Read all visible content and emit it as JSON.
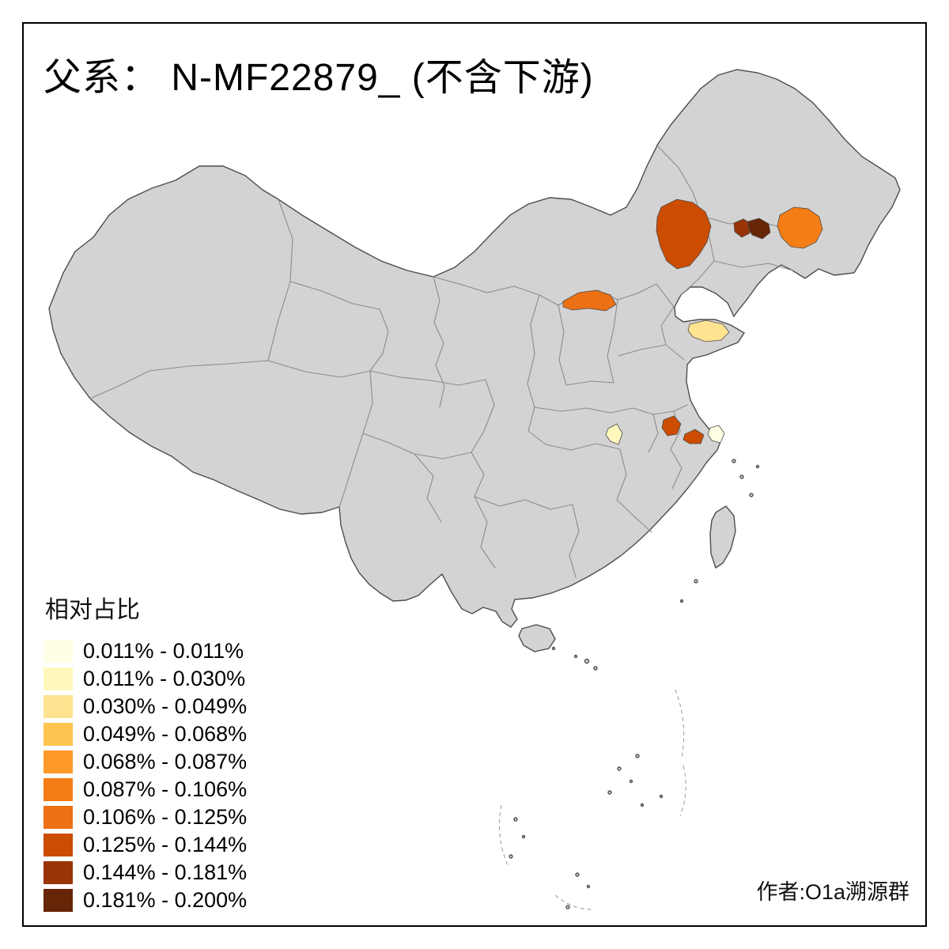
{
  "title": "父系： N-MF22879_ (不含下游)",
  "attribution": "作者:O1a溯源群",
  "legend": {
    "title": "相对占比",
    "items": [
      {
        "label": "0.011% - 0.011%",
        "color": "#FFFFE5"
      },
      {
        "label": "0.011% - 0.030%",
        "color": "#FFF7BC"
      },
      {
        "label": "0.030% - 0.049%",
        "color": "#FEE391"
      },
      {
        "label": "0.049% - 0.068%",
        "color": "#FEC44F"
      },
      {
        "label": "0.068% - 0.087%",
        "color": "#FE9929"
      },
      {
        "label": "0.087% - 0.106%",
        "color": "#F57D15"
      },
      {
        "label": "0.106% - 0.125%",
        "color": "#EC7014"
      },
      {
        "label": "0.125% - 0.144%",
        "color": "#CC4C02"
      },
      {
        "label": "0.144% - 0.181%",
        "color": "#993404"
      },
      {
        "label": "0.181% - 0.200%",
        "color": "#662506"
      }
    ]
  },
  "map": {
    "land_fill": "#D3D3D3",
    "sea_fill": "#FFFFFF",
    "national_border_color": "#4D4D4D",
    "province_border_color": "#8C8C8C",
    "regions": [
      {
        "id": "r1",
        "legend_class": 7
      },
      {
        "id": "r2",
        "legend_class": 8
      },
      {
        "id": "r3",
        "legend_class": 9
      },
      {
        "id": "r4",
        "legend_class": 5
      },
      {
        "id": "r5",
        "legend_class": 6
      },
      {
        "id": "r6",
        "legend_class": 2
      },
      {
        "id": "r7",
        "legend_class": 1
      },
      {
        "id": "r8",
        "legend_class": 7
      },
      {
        "id": "r9",
        "legend_class": 7
      },
      {
        "id": "r10",
        "legend_class": 0
      }
    ]
  }
}
